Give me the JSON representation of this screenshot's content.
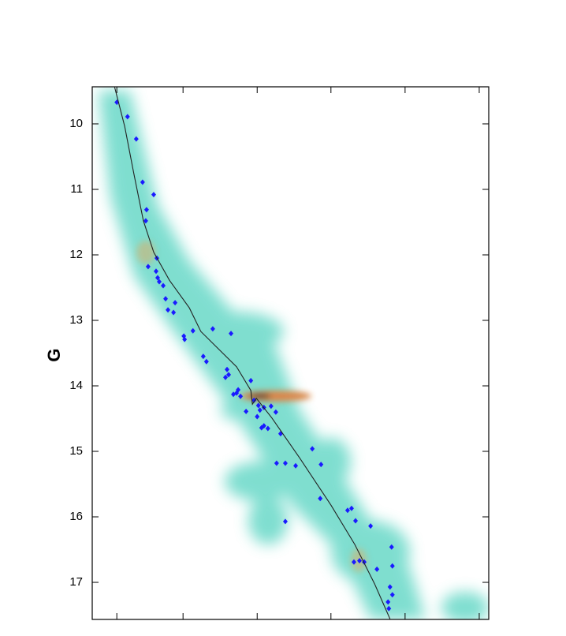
{
  "chart_data": {
    "type": "scatter",
    "y_label": "G",
    "invert_y": true,
    "xlim": [
      0,
      100
    ],
    "xticks": [
      6.2,
      22.9,
      41.6,
      60.2,
      78.9,
      97.6
    ],
    "ylim": [
      9.434,
      17.566
    ],
    "yticks": [
      10,
      11,
      12,
      13,
      14,
      15,
      16,
      17
    ],
    "series": [
      {
        "kind": "points",
        "color": "#1a1aff",
        "x": [
          6.2,
          8.9,
          11.1,
          12.7,
          15.5,
          13.7,
          13.5,
          16.3,
          14.1,
          16.1,
          16.5,
          16.9,
          17.9,
          18.5,
          20.9,
          19.1,
          20.5,
          25.4,
          23.1,
          23.3,
          30.4,
          35.0,
          28.0,
          28.8,
          34.0,
          34.4,
          33.6,
          40.0,
          36.8,
          35.6,
          36.4,
          37.4,
          38.8,
          40.8,
          41.9,
          43.3,
          42.3,
          41.6,
          43.3,
          44.3,
          42.7,
          46.3,
          45.1,
          47.5,
          46.5,
          48.7,
          51.3,
          48.7,
          55.5,
          57.7,
          57.5,
          64.4,
          65.4,
          66.4,
          70.2,
          75.5,
          67.4,
          66.0,
          68.6,
          71.8,
          75.7,
          75.1,
          75.7,
          74.6,
          74.8
        ],
        "y": [
          9.67,
          9.89,
          10.23,
          10.89,
          11.08,
          11.31,
          11.48,
          12.05,
          12.18,
          12.25,
          12.35,
          12.41,
          12.47,
          12.67,
          12.73,
          12.84,
          12.88,
          13.16,
          13.24,
          13.29,
          13.13,
          13.2,
          13.55,
          13.63,
          13.75,
          13.83,
          13.87,
          13.92,
          14.06,
          14.13,
          14.11,
          14.16,
          14.39,
          14.22,
          14.3,
          14.33,
          14.37,
          14.47,
          14.61,
          14.65,
          14.64,
          14.4,
          14.31,
          14.73,
          15.18,
          15.18,
          15.22,
          16.07,
          14.96,
          15.2,
          15.72,
          15.9,
          15.87,
          16.06,
          16.14,
          16.46,
          16.67,
          16.69,
          16.69,
          16.8,
          16.75,
          17.07,
          17.19,
          17.3,
          17.4
        ]
      },
      {
        "kind": "line",
        "color": "#222222",
        "x": [
          5.6,
          8.2,
          10.5,
          12.9,
          15.5,
          19.5,
          24.5,
          27.4,
          31.4,
          36.4,
          40.0,
          40.4,
          41.4,
          45.3,
          52.3,
          60.2,
          66.2,
          71.2,
          75.1
        ],
        "y": [
          9.43,
          10.04,
          10.76,
          11.48,
          11.96,
          12.39,
          12.81,
          13.17,
          13.41,
          13.71,
          14.07,
          14.28,
          14.19,
          14.49,
          15.1,
          15.82,
          16.42,
          17.02,
          17.56
        ]
      }
    ]
  }
}
